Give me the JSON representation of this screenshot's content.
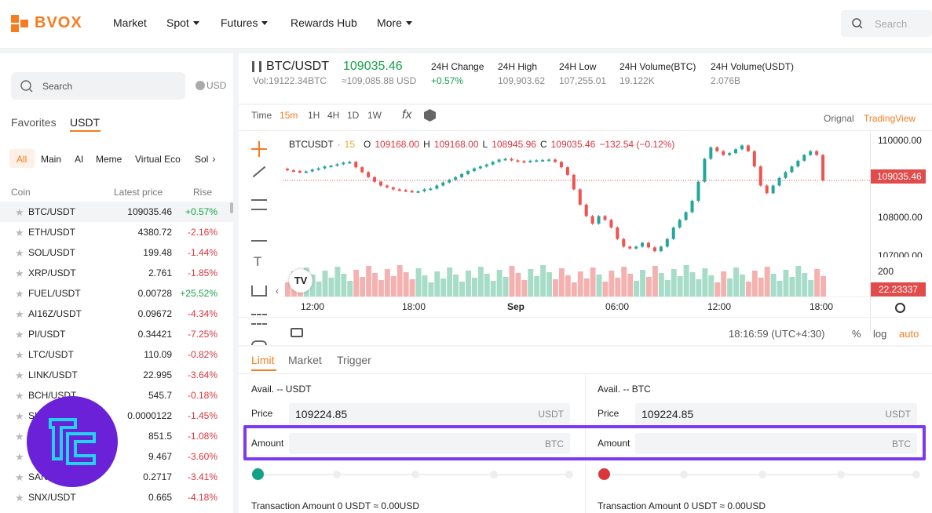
{
  "header": {
    "logo": "BVOX",
    "nav": [
      {
        "label": "Market",
        "caret": false
      },
      {
        "label": "Spot",
        "caret": true
      },
      {
        "label": "Futures",
        "caret": true
      },
      {
        "label": "Rewards Hub",
        "caret": false
      },
      {
        "label": "More",
        "caret": true
      }
    ],
    "search_placeholder": "Search"
  },
  "left_panel": {
    "search_placeholder": "Search",
    "currency": "USD",
    "tabs": [
      "Favorites",
      "USDT"
    ],
    "active_tab": "USDT",
    "categories": [
      "All",
      "Main",
      "AI",
      "Meme",
      "Virtual Eco",
      "Sol"
    ],
    "active_category": "All",
    "columns": [
      "Coin",
      "Latest price",
      "Rise"
    ],
    "coins": [
      {
        "symbol": "BTC/USDT",
        "price": "109035.46",
        "change": "+0.57%",
        "dir": "up"
      },
      {
        "symbol": "ETH/USDT",
        "price": "4380.72",
        "change": "-2.16%",
        "dir": "dn"
      },
      {
        "symbol": "SOL/USDT",
        "price": "199.48",
        "change": "-1.44%",
        "dir": "dn"
      },
      {
        "symbol": "XRP/USDT",
        "price": "2.761",
        "change": "-1.85%",
        "dir": "dn"
      },
      {
        "symbol": "FUEL/USDT",
        "price": "0.00728",
        "change": "+25.52%",
        "dir": "up"
      },
      {
        "symbol": "AI16Z/USDT",
        "price": "0.09672",
        "change": "-4.34%",
        "dir": "dn"
      },
      {
        "symbol": "PI/USDT",
        "price": "0.34421",
        "change": "-7.25%",
        "dir": "dn"
      },
      {
        "symbol": "LTC/USDT",
        "price": "110.09",
        "change": "-0.82%",
        "dir": "dn"
      },
      {
        "symbol": "LINK/USDT",
        "price": "22.995",
        "change": "-3.64%",
        "dir": "dn"
      },
      {
        "symbol": "BCH/USDT",
        "price": "545.7",
        "change": "-0.18%",
        "dir": "dn"
      },
      {
        "symbol": "SHIB/USDT",
        "price": "0.0000122",
        "change": "-1.45%",
        "dir": "dn"
      },
      {
        "symbol": "",
        "price": "851.5",
        "change": "-1.08%",
        "dir": "dn"
      },
      {
        "symbol": "",
        "price": "9.467",
        "change": "-3.60%",
        "dir": "dn"
      },
      {
        "symbol": "SAND/USDT",
        "price": "0.2717",
        "change": "-3.41%",
        "dir": "dn"
      },
      {
        "symbol": "SNX/USDT",
        "price": "0.665",
        "change": "-4.18%",
        "dir": "dn"
      }
    ]
  },
  "ticker": {
    "pair": "BTC/USDT",
    "price": "109035.46",
    "vol": "Vol:19122.34BTC",
    "usd": "≈109,085.88 USD",
    "stats": [
      {
        "label": "24H Change",
        "value": "+0.57%",
        "color": "#16a34a"
      },
      {
        "label": "24H High",
        "value": "109,903.62",
        "color": "#888888"
      },
      {
        "label": "24H Low",
        "value": "107,255.01",
        "color": "#888888"
      },
      {
        "label": "24H Volume(BTC)",
        "value": "19.122K",
        "color": "#888888"
      },
      {
        "label": "24H Volume(USDT)",
        "value": "2.076B",
        "color": "#888888"
      }
    ]
  },
  "chart_toolbar": {
    "time_label": "Time",
    "intervals": [
      "15m",
      "1H",
      "4H",
      "1D",
      "1W"
    ],
    "active_interval": "15m",
    "views": [
      "Orignal",
      "TradingView"
    ],
    "active_view": "TradingView"
  },
  "chart_data": {
    "type": "candlestick",
    "legend": {
      "symbol": "BTCUSDT",
      "interval": "15",
      "open_label": "O",
      "open": "109168.00",
      "high_label": "H",
      "high": "109168.00",
      "low_label": "L",
      "low": "108945.96",
      "close_label": "C",
      "close": "109035.46",
      "change": "−132.54 (−0.12%)"
    },
    "y_ticks": [
      "110000.00",
      "109000.00",
      "108000.00",
      "107000.00"
    ],
    "x_ticks": [
      "12:00",
      "18:00",
      "Sep",
      "06:00",
      "12:00",
      "18:00"
    ],
    "last_price_tag": "109035.46",
    "volume_tag": "22.23337",
    "volume_tick": "200",
    "time_display": "18:16:59 (UTC+4:30)",
    "scale_options": [
      "%",
      "log",
      "auto"
    ],
    "closes": [
      109300,
      109280,
      109250,
      109270,
      109320,
      109350,
      109400,
      109420,
      109460,
      109500,
      109520,
      109380,
      109250,
      109120,
      109000,
      108900,
      108850,
      108800,
      108780,
      108760,
      108740,
      108750,
      108800,
      108820,
      108900,
      108980,
      109050,
      109120,
      109200,
      109280,
      109350,
      109400,
      109450,
      109520,
      109580,
      109600,
      109560,
      109540,
      109520,
      109550,
      109560,
      109570,
      109580,
      109520,
      109380,
      109180,
      108800,
      108400,
      108100,
      107900,
      108100,
      108000,
      107800,
      107500,
      107300,
      107250,
      107300,
      107400,
      107280,
      107180,
      107300,
      107500,
      107800,
      108000,
      108200,
      108500,
      109000,
      109600,
      109900,
      109800,
      109700,
      109750,
      109850,
      109950,
      109800,
      109400,
      108900,
      108700,
      108900,
      109100,
      109250,
      109400,
      109550,
      109700,
      109800,
      109700,
      109035
    ]
  },
  "trade": {
    "tabs": [
      "Limit",
      "Market",
      "Trigger"
    ],
    "active_tab": "Limit",
    "buy": {
      "avail": "Avail. -- USDT",
      "price_label": "Price",
      "price": "109224.85",
      "price_unit": "USDT",
      "amount_label": "Amount",
      "amount_unit": "BTC",
      "tx": "Transaction Amount  0 USDT ≈ 0.00USD",
      "dot_color": "#16a085"
    },
    "sell": {
      "avail": "Avail. -- BTC",
      "price_label": "Price",
      "price": "109224.85",
      "price_unit": "USDT",
      "amount_label": "Amount",
      "amount_unit": "BTC",
      "tx": "Transaction Amount  0 USDT ≈ 0.00USD",
      "dot_color": "#d9363e"
    }
  },
  "colors": {
    "accent": "#f57c20",
    "highlight": "#7c3aed",
    "up": "#16a34a",
    "down": "#d9363e"
  }
}
